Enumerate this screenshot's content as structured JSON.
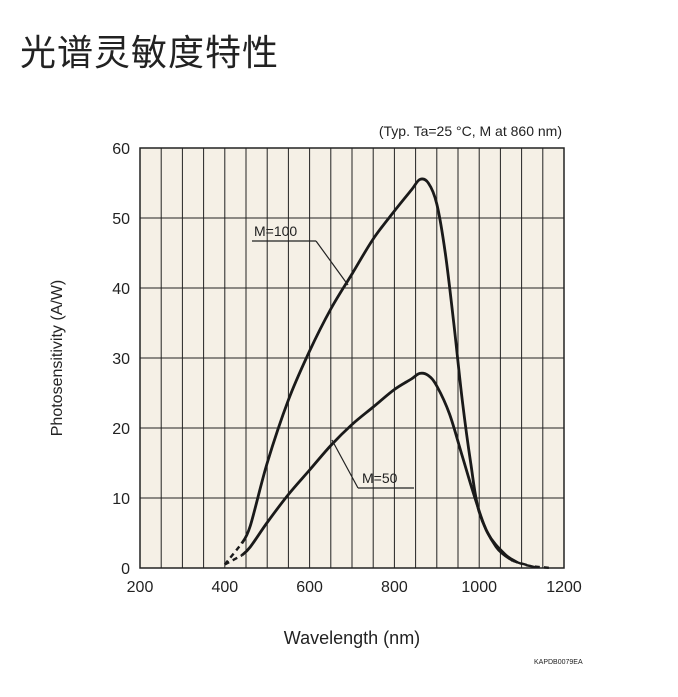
{
  "page": {
    "title": "光谱灵敏度特性"
  },
  "chart_data": {
    "type": "line",
    "subtitle": "(Typ. Ta=25 °C, M at 860 nm)",
    "xlabel": "Wavelength (nm)",
    "ylabel": "Photosensitivity (A/W)",
    "xlim": [
      200,
      1200
    ],
    "ylim": [
      0,
      60
    ],
    "x_ticks": [
      200,
      400,
      600,
      800,
      1000,
      1200
    ],
    "y_ticks": [
      0,
      10,
      20,
      30,
      40,
      50,
      60
    ],
    "grid": true,
    "code_label": "KAPDB0079EA",
    "series": [
      {
        "name": "M=100",
        "dashed_start": [
          [
            400,
            0.5
          ],
          [
            440,
            3.5
          ]
        ],
        "points": [
          [
            440,
            3.5
          ],
          [
            460,
            6
          ],
          [
            500,
            15
          ],
          [
            550,
            24
          ],
          [
            600,
            31
          ],
          [
            650,
            37
          ],
          [
            700,
            42
          ],
          [
            750,
            47
          ],
          [
            800,
            51
          ],
          [
            840,
            54
          ],
          [
            860,
            55.5
          ],
          [
            880,
            55
          ],
          [
            900,
            52
          ],
          [
            920,
            45
          ],
          [
            940,
            35
          ],
          [
            960,
            24
          ],
          [
            980,
            15
          ],
          [
            1000,
            8
          ],
          [
            1040,
            3
          ],
          [
            1080,
            1
          ]
        ],
        "dashed_end": [
          [
            1080,
            1
          ],
          [
            1120,
            0.3
          ],
          [
            1140,
            0
          ]
        ]
      },
      {
        "name": "M=50",
        "dashed_start": [
          [
            400,
            0.5
          ],
          [
            440,
            1.8
          ]
        ],
        "points": [
          [
            440,
            1.8
          ],
          [
            460,
            3
          ],
          [
            500,
            6.5
          ],
          [
            550,
            10.5
          ],
          [
            600,
            14
          ],
          [
            650,
            17.5
          ],
          [
            700,
            20.5
          ],
          [
            750,
            23
          ],
          [
            800,
            25.5
          ],
          [
            840,
            27
          ],
          [
            860,
            27.8
          ],
          [
            880,
            27.5
          ],
          [
            900,
            26
          ],
          [
            930,
            22
          ],
          [
            960,
            16
          ],
          [
            990,
            10
          ],
          [
            1020,
            5
          ],
          [
            1060,
            2
          ],
          [
            1090,
            0.8
          ]
        ],
        "dashed_end": [
          [
            1090,
            0.8
          ],
          [
            1120,
            0.3
          ],
          [
            1170,
            0
          ]
        ]
      }
    ]
  }
}
